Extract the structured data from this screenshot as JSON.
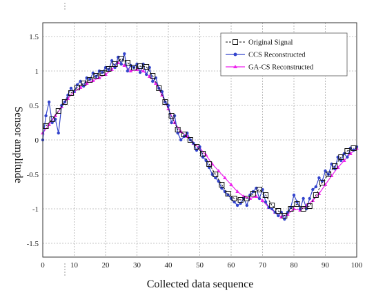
{
  "chart_data": {
    "type": "line",
    "xlabel": "Collected data sequence",
    "ylabel": "Sensor amplitude",
    "xlim": [
      0,
      100
    ],
    "ylim": [
      -1.7,
      1.7
    ],
    "xticks": [
      "0",
      "10",
      "20",
      "30",
      "40",
      "50",
      "60",
      "70",
      "80",
      "90",
      "100"
    ],
    "yticks": [
      "1.5",
      "1",
      "0.5",
      "0",
      "-0.5",
      "-1",
      "-1.5"
    ],
    "grid": true,
    "legend_position": "top-right",
    "series": [
      {
        "name": "Original Signal",
        "color": "#111111",
        "marker": "square",
        "x": [
          1,
          3,
          5,
          7,
          9,
          11,
          13,
          15,
          17,
          19,
          21,
          23,
          25,
          27,
          29,
          31,
          33,
          35,
          37,
          39,
          41,
          43,
          45,
          47,
          49,
          51,
          53,
          55,
          57,
          59,
          61,
          63,
          65,
          67,
          69,
          71,
          73,
          75,
          77,
          79,
          81,
          83,
          85,
          87,
          89,
          91,
          93,
          95,
          97,
          99
        ],
        "y": [
          0.2,
          0.3,
          0.42,
          0.55,
          0.68,
          0.76,
          0.82,
          0.87,
          0.93,
          0.97,
          1.03,
          1.1,
          1.18,
          1.12,
          1.05,
          1.07,
          1.06,
          0.93,
          0.75,
          0.55,
          0.35,
          0.15,
          0.08,
          0.0,
          -0.1,
          -0.2,
          -0.35,
          -0.5,
          -0.65,
          -0.78,
          -0.85,
          -0.87,
          -0.85,
          -0.78,
          -0.72,
          -0.8,
          -0.95,
          -1.03,
          -1.1,
          -1.0,
          -0.93,
          -1.0,
          -0.96,
          -0.8,
          -0.62,
          -0.5,
          -0.38,
          -0.25,
          -0.16,
          -0.12
        ]
      },
      {
        "name": "CCS Reconstructed",
        "color": "#3344cc",
        "marker": "dot",
        "x": [
          0,
          1,
          2,
          3,
          4,
          5,
          6,
          7,
          8,
          9,
          10,
          11,
          12,
          13,
          14,
          15,
          16,
          17,
          18,
          19,
          20,
          21,
          22,
          23,
          24,
          25,
          26,
          27,
          28,
          29,
          30,
          31,
          32,
          33,
          34,
          35,
          36,
          37,
          38,
          39,
          40,
          41,
          42,
          43,
          44,
          45,
          46,
          47,
          48,
          49,
          50,
          51,
          52,
          53,
          54,
          55,
          56,
          57,
          58,
          59,
          60,
          61,
          62,
          63,
          64,
          65,
          66,
          67,
          68,
          69,
          70,
          71,
          72,
          73,
          74,
          75,
          76,
          77,
          78,
          79,
          80,
          81,
          82,
          83,
          84,
          85,
          86,
          87,
          88,
          89,
          90,
          91,
          92,
          93,
          94,
          95,
          96,
          97,
          98,
          99,
          100
        ],
        "y": [
          0.0,
          0.35,
          0.55,
          0.25,
          0.3,
          0.1,
          0.5,
          0.55,
          0.65,
          0.75,
          0.7,
          0.8,
          0.85,
          0.78,
          0.9,
          0.88,
          0.97,
          0.92,
          1.0,
          0.98,
          1.05,
          1.02,
          1.15,
          1.05,
          1.2,
          1.1,
          1.25,
          1.0,
          1.08,
          1.05,
          1.1,
          0.98,
          1.1,
          0.95,
          1.05,
          0.85,
          0.9,
          0.75,
          0.7,
          0.55,
          0.5,
          0.25,
          0.35,
          0.1,
          0.0,
          0.05,
          0.1,
          0.0,
          -0.05,
          -0.15,
          -0.1,
          -0.25,
          -0.3,
          -0.4,
          -0.5,
          -0.55,
          -0.6,
          -0.7,
          -0.75,
          -0.8,
          -0.85,
          -0.9,
          -0.95,
          -0.92,
          -0.85,
          -0.95,
          -0.8,
          -0.75,
          -0.7,
          -0.85,
          -0.72,
          -0.9,
          -0.98,
          -1.0,
          -1.05,
          -1.1,
          -1.05,
          -1.15,
          -1.05,
          -0.98,
          -0.8,
          -0.9,
          -1.0,
          -0.85,
          -1.0,
          -0.85,
          -0.72,
          -0.68,
          -0.55,
          -0.6,
          -0.45,
          -0.5,
          -0.35,
          -0.42,
          -0.25,
          -0.3,
          -0.2,
          -0.25,
          -0.12,
          -0.15,
          -0.1
        ]
      },
      {
        "name": "GA-CS Reconstructed",
        "color": "#ee22ee",
        "marker": "triangle",
        "x": [
          0,
          2,
          4,
          6,
          8,
          10,
          12,
          14,
          16,
          18,
          20,
          22,
          24,
          26,
          28,
          30,
          32,
          34,
          36,
          38,
          40,
          42,
          44,
          46,
          48,
          50,
          52,
          54,
          56,
          58,
          60,
          62,
          64,
          66,
          68,
          70,
          72,
          74,
          76,
          78,
          80,
          82,
          84,
          86,
          88,
          90,
          92,
          94,
          96,
          98,
          100
        ],
        "y": [
          0.1,
          0.22,
          0.35,
          0.48,
          0.6,
          0.7,
          0.76,
          0.82,
          0.86,
          0.9,
          0.95,
          1.02,
          1.12,
          1.08,
          1.0,
          1.02,
          1.0,
          0.92,
          0.82,
          0.65,
          0.45,
          0.25,
          0.12,
          0.05,
          -0.05,
          -0.12,
          -0.22,
          -0.35,
          -0.45,
          -0.55,
          -0.65,
          -0.75,
          -0.82,
          -0.85,
          -0.82,
          -0.88,
          -0.98,
          -1.05,
          -1.12,
          -1.08,
          -1.0,
          -1.02,
          -0.95,
          -0.88,
          -0.78,
          -0.65,
          -0.52,
          -0.4,
          -0.3,
          -0.2,
          -0.12
        ]
      }
    ]
  }
}
